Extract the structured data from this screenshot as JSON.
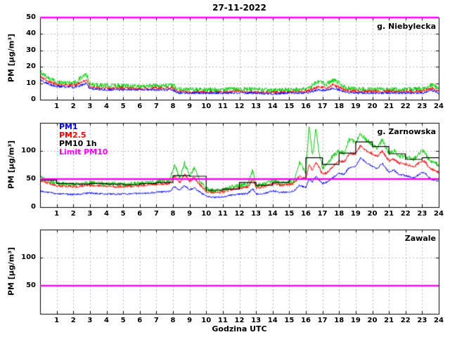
{
  "title": "27-11-2022",
  "xlabel": "Godzina UTC",
  "legend": {
    "pm1": "PM1",
    "pm25": "PM2.5",
    "pm10_1h": "PM10 1h",
    "limit": "Limit PM10"
  },
  "colors": {
    "pm1": "#0000ff",
    "pm25": "#ff0000",
    "pm10": "#00cc00",
    "pm10_1h": "#000000",
    "limit": "#ff00ff",
    "grid": "#b5b5b5",
    "axis": "#000000"
  },
  "chart_data": [
    {
      "type": "line",
      "station": "g. Niebylecka",
      "ylabel": "PM [µg/m³]",
      "xlim": [
        0,
        24
      ],
      "ylim": [
        0,
        50
      ],
      "xticks": [
        1,
        2,
        3,
        4,
        5,
        6,
        7,
        8,
        9,
        10,
        11,
        12,
        13,
        14,
        15,
        16,
        17,
        18,
        19,
        20,
        21,
        22,
        23,
        24
      ],
      "yticks": [
        0,
        10,
        20,
        30,
        40,
        50
      ],
      "grid": true,
      "limit_value": 50,
      "series": [
        {
          "name": "PM10",
          "color_key": "pm10",
          "noise": 1.8,
          "x": [
            0,
            0.5,
            1,
            2,
            2.6,
            2.8,
            3,
            4,
            5,
            6,
            7,
            8,
            8.2,
            9,
            10,
            11,
            12,
            13,
            14,
            15,
            16,
            16.8,
            17.2,
            17.6,
            18,
            18.4,
            19,
            20,
            21,
            22,
            23,
            23.6,
            24
          ],
          "y": [
            17,
            13,
            10.5,
            10,
            14,
            15,
            9,
            8.5,
            8.5,
            8,
            8.5,
            8.5,
            6.5,
            6,
            6,
            6,
            6.5,
            6,
            5.5,
            6,
            6,
            11,
            9,
            12,
            10,
            7,
            6.5,
            6,
            6,
            6,
            6.5,
            9,
            6
          ]
        },
        {
          "name": "PM2.5",
          "color_key": "pm25",
          "noise": 1.1,
          "x": [
            0,
            0.5,
            1,
            2,
            2.6,
            2.8,
            3,
            4,
            5,
            6,
            7,
            8,
            8.2,
            9,
            10,
            11,
            12,
            13,
            14,
            15,
            16,
            16.8,
            17.2,
            17.6,
            18,
            18.4,
            19,
            20,
            21,
            22,
            23,
            23.6,
            24
          ],
          "y": [
            14,
            11,
            9,
            8.5,
            11,
            12,
            7.5,
            7,
            7,
            6.5,
            7,
            7,
            5,
            4.5,
            4.5,
            4.5,
            5,
            4.5,
            4.5,
            4.5,
            5,
            8,
            7,
            9,
            7.5,
            5.5,
            5,
            5,
            5,
            5,
            5,
            7,
            5
          ]
        },
        {
          "name": "PM1",
          "color_key": "pm1",
          "noise": 0.9,
          "x": [
            0,
            0.5,
            1,
            2,
            2.6,
            2.8,
            3,
            4,
            5,
            6,
            7,
            8,
            8.2,
            9,
            10,
            11,
            12,
            13,
            14,
            15,
            16,
            16.8,
            17.2,
            17.6,
            18,
            18.4,
            19,
            20,
            21,
            22,
            23,
            23.6,
            24
          ],
          "y": [
            12,
            9.5,
            8,
            7.5,
            9,
            10,
            6.5,
            6,
            6,
            6,
            6,
            6,
            4,
            4,
            4,
            4,
            4,
            4,
            3.5,
            4,
            4,
            6,
            5.5,
            7,
            6,
            4.5,
            4,
            4,
            4,
            4,
            4,
            5.5,
            4
          ]
        }
      ]
    },
    {
      "type": "line",
      "station": "g. Zarnowska",
      "ylabel": "PM [µg/m³]",
      "xlim": [
        0,
        24
      ],
      "ylim": [
        0,
        150
      ],
      "xticks": [
        1,
        2,
        3,
        4,
        5,
        6,
        7,
        8,
        9,
        10,
        11,
        12,
        13,
        14,
        15,
        16,
        17,
        18,
        19,
        20,
        21,
        22,
        23,
        24
      ],
      "yticks": [
        0,
        50,
        100
      ],
      "grid": true,
      "limit_value": 50,
      "legend_position": "top-left",
      "series": [
        {
          "name": "PM10",
          "color_key": "pm10",
          "noise": 5,
          "x": [
            0,
            0.3,
            1,
            2,
            3,
            4,
            5,
            6,
            7,
            7.8,
            8.1,
            8.4,
            8.7,
            9,
            9.3,
            9.6,
            10,
            10.5,
            11,
            11.5,
            12,
            12.5,
            12.8,
            13,
            13.5,
            14,
            14.5,
            15,
            15.3,
            15.6,
            16,
            16.2,
            16.4,
            16.6,
            16.8,
            17,
            17.3,
            17.6,
            18,
            18.3,
            18.6,
            19,
            19.3,
            19.6,
            20,
            20.3,
            20.6,
            21,
            21.3,
            21.6,
            22,
            22.5,
            23,
            23.2,
            23.5,
            24
          ],
          "y": [
            52,
            48,
            42,
            40,
            43,
            41,
            40,
            42,
            44,
            48,
            75,
            50,
            78,
            55,
            70,
            45,
            32,
            28,
            30,
            35,
            38,
            40,
            65,
            38,
            40,
            47,
            42,
            44,
            46,
            80,
            60,
            145,
            90,
            140,
            95,
            70,
            75,
            90,
            100,
            95,
            120,
            115,
            130,
            120,
            110,
            105,
            120,
            95,
            100,
            90,
            90,
            85,
            100,
            95,
            80,
            75
          ]
        },
        {
          "name": "PM2.5",
          "color_key": "pm25",
          "noise": 3,
          "x": [
            0,
            0.3,
            1,
            2,
            3,
            4,
            5,
            6,
            7,
            7.8,
            8.1,
            8.4,
            8.7,
            9,
            9.3,
            9.6,
            10,
            10.5,
            11,
            11.5,
            12,
            12.5,
            12.8,
            13,
            13.5,
            14,
            14.5,
            15,
            15.3,
            15.6,
            16,
            16.2,
            16.4,
            16.6,
            16.8,
            17,
            17.3,
            17.6,
            18,
            18.3,
            18.6,
            19,
            19.3,
            19.6,
            20,
            20.3,
            20.6,
            21,
            21.3,
            21.6,
            22,
            22.5,
            23,
            23.2,
            23.5,
            24
          ],
          "y": [
            46,
            44,
            38,
            36,
            39,
            37,
            36,
            38,
            40,
            42,
            55,
            44,
            58,
            46,
            52,
            40,
            28,
            25,
            27,
            31,
            34,
            35,
            50,
            34,
            36,
            42,
            38,
            40,
            42,
            55,
            50,
            75,
            65,
            80,
            70,
            58,
            62,
            72,
            82,
            80,
            95,
            95,
            110,
            100,
            95,
            90,
            100,
            82,
            85,
            78,
            76,
            72,
            82,
            80,
            68,
            62
          ]
        },
        {
          "name": "PM1",
          "color_key": "pm1",
          "noise": 2,
          "x": [
            0,
            0.3,
            1,
            2,
            3,
            4,
            5,
            6,
            7,
            7.8,
            8.1,
            8.4,
            8.7,
            9,
            9.3,
            9.6,
            10,
            10.5,
            11,
            11.5,
            12,
            12.5,
            12.8,
            13,
            13.5,
            14,
            14.5,
            15,
            15.3,
            15.6,
            16,
            16.2,
            16.4,
            16.6,
            16.8,
            17,
            17.3,
            17.6,
            18,
            18.3,
            18.6,
            19,
            19.3,
            19.6,
            20,
            20.3,
            20.6,
            21,
            21.3,
            21.6,
            22,
            22.5,
            23,
            23.2,
            23.5,
            24
          ],
          "y": [
            28,
            27,
            24,
            22,
            25,
            23,
            23,
            24,
            26,
            28,
            36,
            30,
            38,
            31,
            34,
            27,
            19,
            17,
            18,
            21,
            23,
            24,
            33,
            23,
            24,
            29,
            26,
            27,
            29,
            38,
            35,
            50,
            45,
            55,
            48,
            42,
            45,
            52,
            60,
            58,
            70,
            72,
            88,
            80,
            72,
            68,
            78,
            62,
            66,
            58,
            56,
            52,
            62,
            60,
            50,
            46
          ]
        }
      ],
      "hourly_series": {
        "name": "PM10 1h",
        "color_key": "pm10_1h",
        "values": [
          48,
          42,
          41,
          42,
          41,
          40,
          42,
          44,
          56,
          55,
          30,
          32,
          44,
          39,
          44,
          50,
          88,
          76,
          96,
          116,
          108,
          95,
          85,
          88
        ]
      }
    },
    {
      "type": "line",
      "station": "Zawale",
      "ylabel": "PM [µg/m³]",
      "xlim": [
        0,
        24
      ],
      "ylim": [
        0,
        150
      ],
      "xticks": [
        1,
        2,
        3,
        4,
        5,
        6,
        7,
        8,
        9,
        10,
        11,
        12,
        13,
        14,
        15,
        16,
        17,
        18,
        19,
        20,
        21,
        22,
        23,
        24
      ],
      "yticks": [
        50,
        100
      ],
      "grid": true,
      "limit_value": 50,
      "series": []
    }
  ]
}
